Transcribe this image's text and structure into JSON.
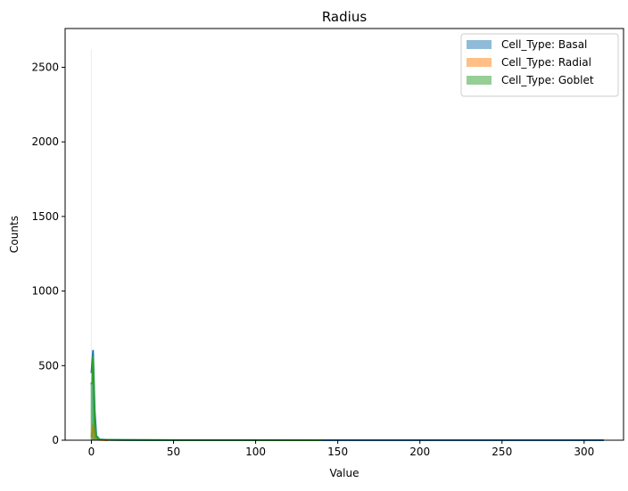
{
  "chart_data": {
    "type": "area",
    "title": "Radius",
    "xlabel": "Value",
    "ylabel": "Counts",
    "xlim": [
      -16,
      324
    ],
    "ylim": [
      0,
      2760
    ],
    "xticks": [
      0,
      50,
      100,
      150,
      200,
      250,
      300
    ],
    "yticks": [
      0,
      500,
      1000,
      1500,
      2000,
      2500
    ],
    "legend": {
      "placement": "top-right",
      "entries": [
        "Cell_Type: Basal",
        "Cell_Type: Radial",
        "Cell_Type: Goblet"
      ]
    },
    "series": [
      {
        "name": "Cell_Type: Basal",
        "color": "#1f77b4",
        "x": [
          0,
          1,
          2,
          3,
          5,
          10,
          20,
          50,
          100,
          150,
          200,
          250,
          312
        ],
        "values": [
          450,
          600,
          200,
          30,
          5,
          2,
          1,
          0,
          0,
          0,
          0,
          0,
          0
        ]
      },
      {
        "name": "Cell_Type: Radial",
        "color": "#ff7f0e",
        "x": [
          0,
          0.5,
          1,
          2,
          3,
          5,
          10
        ],
        "values": [
          20,
          60,
          100,
          40,
          10,
          2,
          0
        ]
      },
      {
        "name": "Cell_Type: Goblet",
        "color": "#2ca02c",
        "x": [
          -0.5,
          0.5,
          1,
          2,
          3,
          5,
          10,
          50,
          100,
          140
        ],
        "values": [
          380,
          380,
          560,
          120,
          20,
          4,
          2,
          1,
          1,
          0
        ]
      }
    ],
    "spike": {
      "x": 0,
      "value": 2620
    },
    "grid": false
  }
}
